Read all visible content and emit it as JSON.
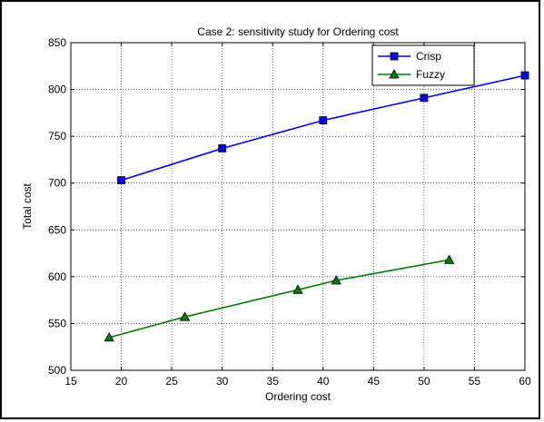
{
  "chart_data": {
    "type": "line",
    "title": "Case 2: sensitivity study for Ordering cost",
    "xlabel": "Ordering cost",
    "ylabel": "Total cost",
    "xlim": [
      15,
      60
    ],
    "ylim": [
      500,
      850
    ],
    "xticks": [
      15,
      20,
      25,
      30,
      35,
      40,
      45,
      50,
      55,
      60
    ],
    "yticks": [
      500,
      550,
      600,
      650,
      700,
      750,
      800,
      850
    ],
    "grid": true,
    "legend_position": "top-right",
    "series": [
      {
        "name": "Crisp",
        "color": "#0000ff",
        "marker": "square",
        "x": [
          20,
          30,
          40,
          50,
          60
        ],
        "y": [
          703,
          737,
          767,
          791,
          815
        ]
      },
      {
        "name": "Fuzzy",
        "color": "#007f00",
        "marker": "triangle",
        "x": [
          18.8,
          26.3,
          37.5,
          41.3,
          52.5
        ],
        "y": [
          535,
          557,
          586,
          596,
          618
        ]
      }
    ]
  }
}
